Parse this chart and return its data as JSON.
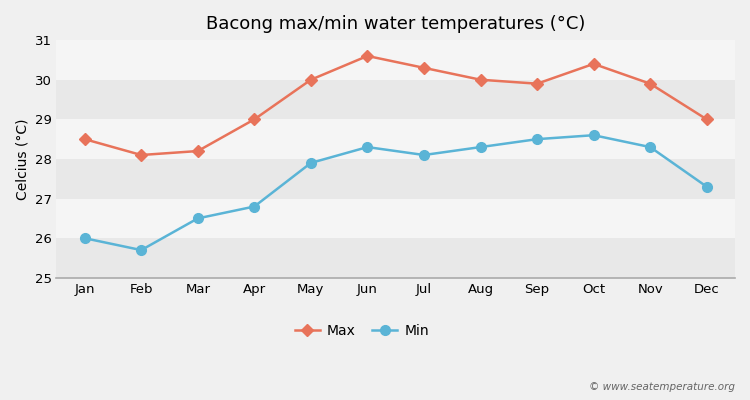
{
  "title": "Bacong max/min water temperatures (°C)",
  "ylabel": "Celcius (°C)",
  "months": [
    "Jan",
    "Feb",
    "Mar",
    "Apr",
    "May",
    "Jun",
    "Jul",
    "Aug",
    "Sep",
    "Oct",
    "Nov",
    "Dec"
  ],
  "max_temps": [
    28.5,
    28.1,
    28.2,
    29.0,
    30.0,
    30.6,
    30.3,
    30.0,
    29.9,
    30.4,
    29.9,
    29.0
  ],
  "min_temps": [
    26.0,
    25.7,
    26.5,
    26.8,
    27.9,
    28.3,
    28.1,
    28.3,
    28.5,
    28.6,
    28.3,
    27.3
  ],
  "max_color": "#e8735a",
  "min_color": "#5ab4d6",
  "outer_bg_color": "#f0f0f0",
  "band_light": "#f5f5f5",
  "band_dark": "#e8e8e8",
  "ylim": [
    25,
    31
  ],
  "yticks": [
    25,
    26,
    27,
    28,
    29,
    30,
    31
  ],
  "watermark": "© www.seatemperature.org",
  "title_fontsize": 13,
  "axis_fontsize": 10,
  "tick_fontsize": 9.5,
  "marker_max": "D",
  "marker_min": "o",
  "marker_size_max": 6,
  "marker_size_min": 7,
  "line_width": 1.8
}
